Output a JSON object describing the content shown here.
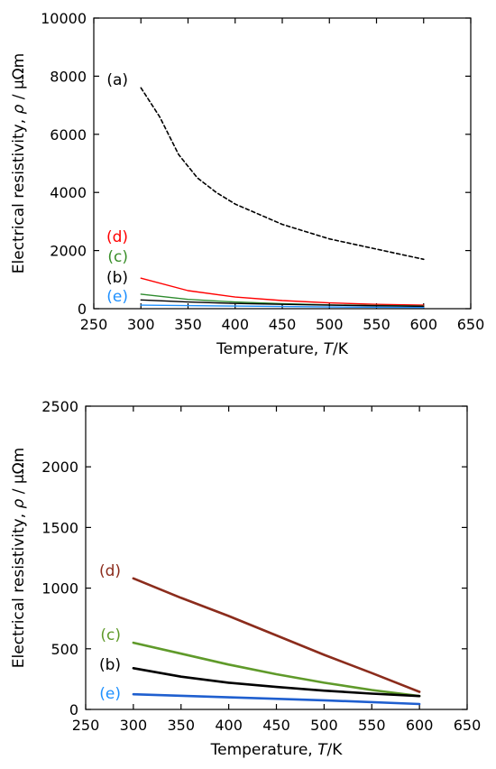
{
  "chart_data": [
    {
      "type": "line",
      "xlabel_text": "Temperature, ",
      "xlabel_symbol": "T",
      "xlabel_unit": "/K",
      "ylabel_text": "Electrical resistivity, ",
      "ylabel_symbol": "ρ",
      "ylabel_unit": " / μΩm",
      "xlim": [
        250,
        650
      ],
      "ylim": [
        0,
        10000
      ],
      "xticks": [
        250,
        300,
        350,
        400,
        450,
        500,
        550,
        600,
        650
      ],
      "yticks": [
        0,
        2000,
        4000,
        6000,
        8000,
        10000
      ],
      "series": [
        {
          "name": "(a)",
          "color": "#000000",
          "dashed": true,
          "label_color": "#000000",
          "x": [
            300,
            320,
            340,
            360,
            380,
            400,
            450,
            500,
            550,
            600
          ],
          "y": [
            7600,
            6600,
            5300,
            4500,
            4000,
            3600,
            2900,
            2400,
            2050,
            1700
          ]
        },
        {
          "name": "(d)",
          "color": "#ff0000",
          "dashed": false,
          "label_color": "#ff0000",
          "x": [
            300,
            350,
            400,
            450,
            500,
            550,
            600
          ],
          "y": [
            1050,
            620,
            400,
            280,
            200,
            150,
            120
          ]
        },
        {
          "name": "(c)",
          "color": "#2e8b2e",
          "dashed": false,
          "label_color": "#3a8f2a",
          "x": [
            300,
            350,
            400,
            450,
            500,
            550,
            600
          ],
          "y": [
            500,
            320,
            230,
            170,
            130,
            110,
            90
          ]
        },
        {
          "name": "(b)",
          "color": "#000000",
          "dashed": false,
          "label_color": "#000000",
          "x": [
            300,
            350,
            400,
            450,
            500,
            550,
            600
          ],
          "y": [
            300,
            230,
            180,
            150,
            120,
            100,
            80
          ]
        },
        {
          "name": "(e)",
          "color": "#1e90ff",
          "dashed": false,
          "label_color": "#1e90ff",
          "x": [
            300,
            400,
            500,
            600
          ],
          "y": [
            120,
            90,
            60,
            40
          ]
        }
      ]
    },
    {
      "type": "line",
      "xlabel_text": "Temperature, ",
      "xlabel_symbol": "T",
      "xlabel_unit": "/K",
      "ylabel_text": "Electrical resistivity, ",
      "ylabel_symbol": "ρ",
      "ylabel_unit": " / μΩm",
      "xlim": [
        250,
        650
      ],
      "ylim": [
        0,
        2500
      ],
      "xticks": [
        250,
        300,
        350,
        400,
        450,
        500,
        550,
        600,
        650
      ],
      "yticks": [
        0,
        500,
        1000,
        1500,
        2000,
        2500
      ],
      "series": [
        {
          "name": "(d)",
          "color": "#8b2c1c",
          "dashed": false,
          "label_color": "#8b2c1c",
          "x": [
            300,
            350,
            400,
            450,
            500,
            550,
            600
          ],
          "y": [
            1080,
            920,
            770,
            610,
            450,
            300,
            145
          ]
        },
        {
          "name": "(c)",
          "color": "#5f9a2a",
          "dashed": false,
          "label_color": "#5f9a2a",
          "x": [
            300,
            350,
            400,
            450,
            500,
            550,
            600
          ],
          "y": [
            550,
            460,
            370,
            290,
            220,
            160,
            110
          ]
        },
        {
          "name": "(b)",
          "color": "#000000",
          "dashed": false,
          "label_color": "#000000",
          "x": [
            300,
            350,
            400,
            450,
            500,
            550,
            600
          ],
          "y": [
            340,
            270,
            220,
            185,
            155,
            130,
            110
          ]
        },
        {
          "name": "(e)",
          "color": "#1f5fcf",
          "dashed": false,
          "label_color": "#1e90ff",
          "x": [
            300,
            400,
            500,
            600
          ],
          "y": [
            125,
            100,
            75,
            45
          ]
        }
      ]
    }
  ]
}
